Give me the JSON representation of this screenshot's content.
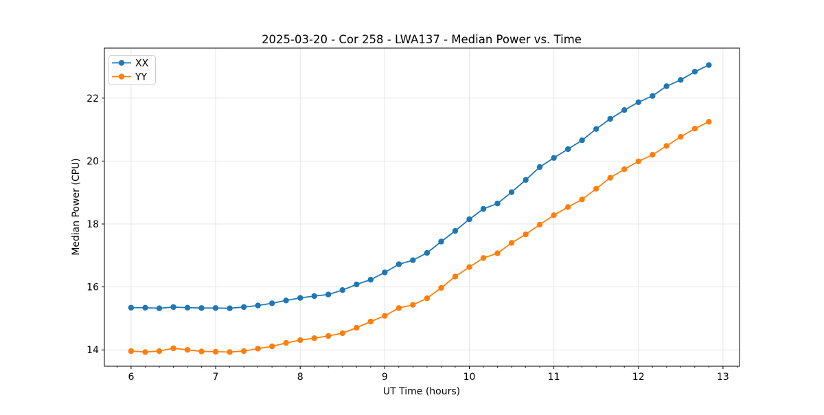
{
  "chart_data": {
    "type": "line",
    "title": "2025-03-20 - Cor 258 - LWA137 - Median Power vs. Time",
    "xlabel": "UT Time (hours)",
    "ylabel": "Median Power (CPU)",
    "xlim": [
      5.684,
      13.196
    ],
    "ylim": [
      13.48,
      23.59
    ],
    "xticks": [
      6,
      7,
      8,
      9,
      10,
      11,
      12,
      13
    ],
    "yticks": [
      14,
      16,
      18,
      20,
      22
    ],
    "x_minor_divisions": 6,
    "grid": true,
    "grid_color": "#e6e6e6",
    "legend_position": "upper-left",
    "x": [
      6.0,
      6.167,
      6.333,
      6.5,
      6.667,
      6.833,
      7.0,
      7.167,
      7.333,
      7.5,
      7.667,
      7.833,
      8.0,
      8.167,
      8.333,
      8.5,
      8.667,
      8.833,
      9.0,
      9.167,
      9.333,
      9.5,
      9.667,
      9.833,
      10.0,
      10.167,
      10.333,
      10.5,
      10.667,
      10.833,
      11.0,
      11.167,
      11.333,
      11.5,
      11.667,
      11.833,
      12.0,
      12.167,
      12.333,
      12.5,
      12.667,
      12.833
    ],
    "series": [
      {
        "name": "XX",
        "color": "#1f77b4",
        "values": [
          15.34,
          15.34,
          15.32,
          15.36,
          15.34,
          15.33,
          15.33,
          15.32,
          15.36,
          15.41,
          15.48,
          15.57,
          15.65,
          15.71,
          15.76,
          15.9,
          16.08,
          16.23,
          16.46,
          16.72,
          16.85,
          17.08,
          17.44,
          17.78,
          18.15,
          18.48,
          18.65,
          19.01,
          19.4,
          19.81,
          20.1,
          20.38,
          20.66,
          21.02,
          21.34,
          21.62,
          21.87,
          22.07,
          22.38,
          22.58,
          22.84,
          23.05
        ]
      },
      {
        "name": "YY",
        "color": "#ff7f0e",
        "values": [
          13.96,
          13.93,
          13.96,
          14.05,
          14.0,
          13.95,
          13.94,
          13.93,
          13.96,
          14.04,
          14.11,
          14.22,
          14.31,
          14.37,
          14.44,
          14.53,
          14.7,
          14.9,
          15.08,
          15.33,
          15.43,
          15.64,
          15.97,
          16.33,
          16.63,
          16.92,
          17.07,
          17.4,
          17.67,
          17.98,
          18.28,
          18.54,
          18.78,
          19.12,
          19.47,
          19.74,
          19.99,
          20.2,
          20.48,
          20.77,
          21.03,
          21.25
        ]
      }
    ]
  }
}
